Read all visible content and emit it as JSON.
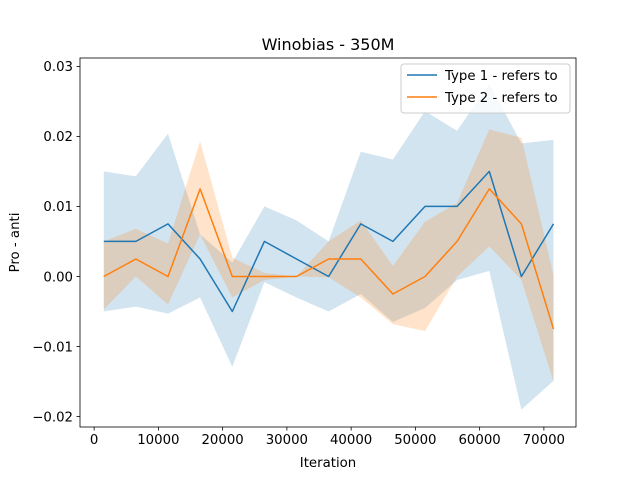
{
  "chart_data": {
    "type": "line",
    "title": "Winobias - 350M",
    "xlabel": "Iteration",
    "ylabel": "Pro - anti",
    "xlim": [
      -2200,
      75000
    ],
    "ylim": [
      -0.0215,
      0.0312
    ],
    "xticks": [
      0,
      10000,
      20000,
      30000,
      40000,
      50000,
      60000,
      70000
    ],
    "xtick_labels": [
      "0",
      "10000",
      "20000",
      "30000",
      "40000",
      "50000",
      "60000",
      "70000"
    ],
    "yticks": [
      -0.02,
      -0.01,
      0.0,
      0.01,
      0.02,
      0.03
    ],
    "ytick_labels": [
      "−0.02",
      "−0.01",
      "0.00",
      "0.01",
      "0.02",
      "0.03"
    ],
    "legend_position": "top-right",
    "grid": false,
    "x": [
      1500,
      6500,
      11500,
      16500,
      21500,
      26500,
      31500,
      36500,
      41500,
      46500,
      51500,
      56500,
      61500,
      66500,
      71500
    ],
    "series": [
      {
        "name": "Type 1 - refers to",
        "color": "#1f77b4",
        "band_color": "#1f77b4",
        "values": [
          0.005,
          0.005,
          0.0075,
          0.0025,
          -0.005,
          0.005,
          0.0025,
          0.0,
          0.0075,
          0.005,
          0.01,
          0.01,
          0.015,
          0.0,
          0.0075
        ],
        "lower": [
          -0.005,
          -0.0043,
          -0.0053,
          -0.003,
          -0.0129,
          -0.0008,
          -0.003,
          -0.005,
          -0.0025,
          -0.0065,
          -0.0045,
          -0.0005,
          0.0008,
          -0.019,
          -0.0149
        ],
        "upper": [
          0.015,
          0.0143,
          0.0204,
          0.006,
          0.002,
          0.01,
          0.008,
          0.005,
          0.0178,
          0.0167,
          0.0236,
          0.0208,
          0.0275,
          0.019,
          0.0195
        ]
      },
      {
        "name": "Type 2 - refers to",
        "color": "#ff7f0e",
        "band_color": "#ff7f0e",
        "values": [
          0.0,
          0.0025,
          0.0,
          0.0125,
          0.0,
          0.0,
          0.0,
          0.0025,
          0.0025,
          -0.0025,
          0.0,
          0.005,
          0.0125,
          0.0075,
          -0.0075
        ],
        "lower": [
          -0.0047,
          0.0,
          -0.004,
          0.006,
          -0.003,
          -0.0005,
          0.0,
          -0.0001,
          -0.003,
          -0.0068,
          -0.0078,
          0.0,
          0.0043,
          -0.0005,
          -0.015
        ],
        "upper": [
          0.005,
          0.0068,
          0.0047,
          0.0193,
          0.0027,
          0.0005,
          0.0,
          0.005,
          0.008,
          0.0015,
          0.0078,
          0.0105,
          0.021,
          0.0198,
          0.0002
        ]
      }
    ]
  }
}
